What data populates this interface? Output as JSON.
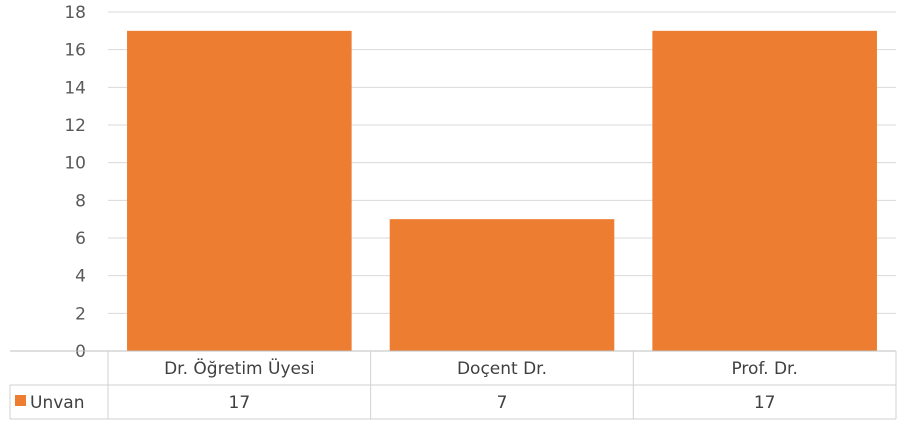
{
  "chart_data": {
    "type": "bar",
    "categories": [
      "Dr. Öğretim Üyesi",
      "Doçent Dr.",
      "Prof. Dr."
    ],
    "series": [
      {
        "name": "Unvan",
        "values": [
          17,
          7,
          17
        ],
        "color": "#ED7D31"
      }
    ],
    "ylim": [
      0,
      18
    ],
    "ytick_step": 2,
    "y_ticks": [
      "0",
      "2",
      "4",
      "6",
      "8",
      "10",
      "12",
      "14",
      "16",
      "18"
    ],
    "grid": true,
    "data_table": true,
    "legend": "data-table-key"
  }
}
